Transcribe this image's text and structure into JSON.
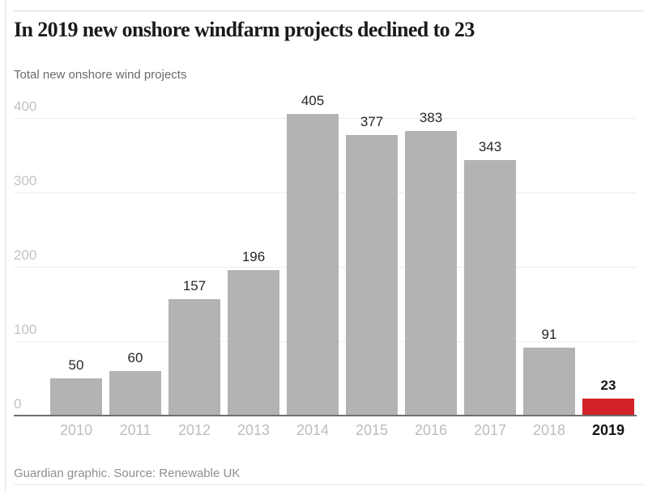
{
  "page": {
    "title": "In 2019 new onshore windfarm projects declined to 23",
    "subtitle": "Total new onshore wind projects",
    "source": "Guardian graphic. Source: Renewable UK"
  },
  "chart_data": {
    "type": "bar",
    "title": "In 2019 new onshore windfarm projects declined to 23",
    "subtitle": "Total new onshore wind projects",
    "source": "Guardian graphic. Source: Renewable UK",
    "categories": [
      "2010",
      "2011",
      "2012",
      "2013",
      "2014",
      "2015",
      "2016",
      "2017",
      "2018",
      "2019"
    ],
    "values": [
      50,
      60,
      157,
      196,
      405,
      377,
      383,
      343,
      91,
      23
    ],
    "value_labels_shown": true,
    "highlight_index": 9,
    "highlight_category": "2019",
    "highlight_value": 23,
    "y_ticks": [
      0,
      100,
      200,
      300,
      400
    ],
    "ylim": [
      0,
      440
    ],
    "grid": true,
    "legend": false,
    "colors": {
      "bar": "#b3b3b3",
      "highlight": "#d2232b",
      "axis_line": "#6f6f6f",
      "gridline": "#ededed",
      "tick_label": "#c3c3c3",
      "value_label": "#262626",
      "title": "#1b1b1b"
    }
  }
}
